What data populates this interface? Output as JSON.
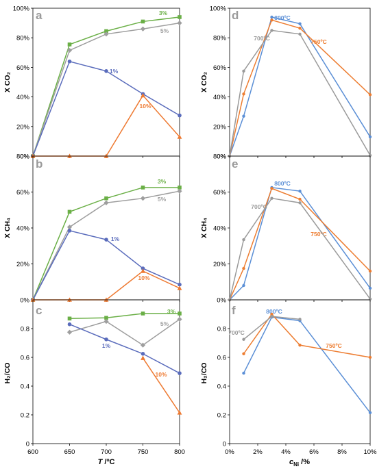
{
  "colors": {
    "green": "#6aaf46",
    "gray": "#9e9e9e",
    "blue": "#5a6cbc",
    "orange": "#ee7a32",
    "lightblue": "#5b8fd6",
    "orange2": "#ed7d31",
    "gray2": "#9a9a9a"
  },
  "left_axis": {
    "xlabel_italic": "T",
    "xlabel_rest": " /ºC",
    "xticks": [
      "600",
      "650",
      "700",
      "750",
      "800"
    ]
  },
  "right_axis": {
    "xlabel_italic": "c",
    "xlabel_sub": "Ni",
    "xlabel_rest": " /%",
    "xticks": [
      "0%",
      "2%",
      "4%",
      "6%",
      "8%",
      "10%"
    ]
  },
  "panels_text": {
    "a": {
      "letter": "a",
      "ylabel": "X CO₂"
    },
    "b": {
      "letter": "b",
      "ylabel": "X CH₄"
    },
    "c": {
      "letter": "c",
      "ylabel": "H₂/CO"
    },
    "d": {
      "letter": "d",
      "ylabel": "X CO₂"
    },
    "e": {
      "letter": "e",
      "ylabel": "X CH₄"
    },
    "f": {
      "letter": "f",
      "ylabel": "H₂/CO"
    }
  },
  "chart_data": [
    {
      "panel": "a",
      "type": "line",
      "ylabel": "X CO2",
      "x": [
        600,
        650,
        700,
        750,
        800
      ],
      "xlim": [
        600,
        800
      ],
      "ylim": [
        0,
        100
      ],
      "yticks": [
        "0%",
        "20%",
        "40%",
        "60%",
        "80%",
        "100%"
      ],
      "series": [
        {
          "name": "3%",
          "color": "green",
          "marker": "square",
          "values": [
            0,
            75.5,
            84.5,
            91,
            94
          ]
        },
        {
          "name": "5%",
          "color": "gray",
          "marker": "diamond",
          "values": [
            0,
            71.5,
            82.5,
            86,
            90
          ]
        },
        {
          "name": "1%",
          "color": "blue",
          "marker": "circle",
          "values": [
            0,
            64,
            57.5,
            42,
            27.5
          ]
        },
        {
          "name": "10%",
          "color": "orange",
          "marker": "triangle",
          "values": [
            0,
            0,
            0,
            41,
            13
          ]
        }
      ]
    },
    {
      "panel": "b",
      "type": "line",
      "ylabel": "X CH4",
      "x": [
        600,
        650,
        700,
        750,
        800
      ],
      "xlim": [
        600,
        800
      ],
      "ylim": [
        0,
        80
      ],
      "yticks": [
        "0%",
        "20%",
        "40%",
        "60%",
        "80%"
      ],
      "series": [
        {
          "name": "3%",
          "color": "green",
          "marker": "square",
          "values": [
            0,
            49,
            56.5,
            62.5,
            62.5
          ]
        },
        {
          "name": "5%",
          "color": "gray",
          "marker": "diamond",
          "values": [
            0,
            40.5,
            54,
            56.5,
            60.5
          ]
        },
        {
          "name": "1%",
          "color": "blue",
          "marker": "circle",
          "values": [
            0,
            38.5,
            33.5,
            17.5,
            8.5
          ]
        },
        {
          "name": "10%",
          "color": "orange",
          "marker": "triangle",
          "values": [
            0,
            0,
            0,
            16,
            6.5
          ]
        }
      ]
    },
    {
      "panel": "c",
      "type": "line",
      "ylabel": "H2/CO",
      "x": [
        650,
        700,
        750,
        800
      ],
      "xlim": [
        600,
        800
      ],
      "ylim": [
        0,
        1.0
      ],
      "yticks": [
        "0",
        "0.2",
        "0.4",
        "0.6",
        "0.8"
      ],
      "xticks": [
        "600",
        "650",
        "700",
        "750",
        "800"
      ],
      "xlabel": "T /ºC",
      "series": [
        {
          "name": "3%",
          "color": "green",
          "marker": "square",
          "values": [
            0.87,
            0.875,
            0.905,
            0.905
          ]
        },
        {
          "name": "5%",
          "color": "gray",
          "marker": "diamond",
          "values": [
            0.775,
            0.85,
            0.685,
            0.865
          ]
        },
        {
          "name": "1%",
          "color": "blue",
          "marker": "circle",
          "values": [
            0.83,
            0.725,
            0.625,
            0.49
          ]
        },
        {
          "name": "10%",
          "color": "orange",
          "marker": "triangle",
          "values": [
            null,
            null,
            0.595,
            0.215
          ]
        }
      ]
    },
    {
      "panel": "d",
      "type": "line",
      "ylabel": "X CO2",
      "x": [
        0,
        1,
        3,
        5,
        10
      ],
      "xlim": [
        0,
        10
      ],
      "ylim": [
        0,
        100
      ],
      "yticks": [
        "0%",
        "20%",
        "40%",
        "60%",
        "80%",
        "100%"
      ],
      "series": [
        {
          "name": "800ºC",
          "color": "lightblue",
          "values": [
            0,
            27,
            94,
            89.5,
            13
          ]
        },
        {
          "name": "750ºC",
          "color": "orange2",
          "values": [
            0,
            42,
            92,
            86.5,
            41.5
          ]
        },
        {
          "name": "700ºC",
          "color": "gray2",
          "values": [
            0,
            57.5,
            85,
            82.5,
            0.5
          ]
        }
      ]
    },
    {
      "panel": "e",
      "type": "line",
      "ylabel": "X CH4",
      "x": [
        0,
        1,
        3,
        5,
        10
      ],
      "xlim": [
        0,
        10
      ],
      "ylim": [
        0,
        80
      ],
      "yticks": [
        "0%",
        "20%",
        "40%",
        "60%",
        "80%"
      ],
      "series": [
        {
          "name": "800ºC",
          "color": "lightblue",
          "values": [
            0,
            8,
            62.5,
            60.5,
            6.5
          ]
        },
        {
          "name": "750ºC",
          "color": "orange2",
          "values": [
            0,
            17.5,
            62,
            56,
            16
          ]
        },
        {
          "name": "700ºC",
          "color": "gray2",
          "values": [
            0,
            33.5,
            56.5,
            54,
            0.5
          ]
        }
      ]
    },
    {
      "panel": "f",
      "type": "line",
      "ylabel": "H2/CO",
      "x": [
        1,
        3,
        5,
        10
      ],
      "xlim": [
        0,
        10
      ],
      "ylim": [
        0,
        1.0
      ],
      "yticks": [
        "0",
        "0.2",
        "0.4",
        "0.6",
        "0.8"
      ],
      "xticks": [
        "0%",
        "2%",
        "4%",
        "6%",
        "8%",
        "10%"
      ],
      "xlabel": "cNi /%",
      "series": [
        {
          "name": "800ºC",
          "color": "lightblue",
          "values": [
            0.49,
            0.88,
            0.855,
            0.215
          ]
        },
        {
          "name": "750ºC",
          "color": "orange2",
          "values": [
            0.625,
            0.9,
            0.685,
            0.6
          ]
        },
        {
          "name": "700ºC",
          "color": "gray2",
          "values": [
            0.725,
            0.885,
            0.865,
            null
          ]
        }
      ]
    }
  ]
}
